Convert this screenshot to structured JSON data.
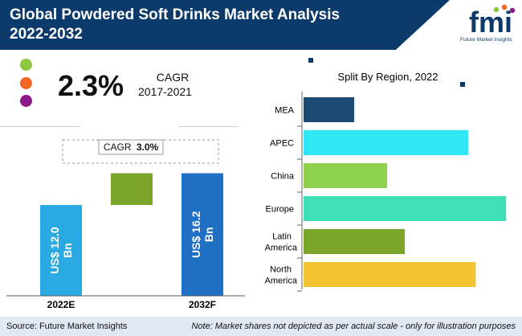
{
  "header": {
    "title_line1": "Global Powdered Soft Drinks Market Analysis",
    "title_line2": "2022-2032",
    "logo_text": "fmi",
    "logo_tagline": "Future Market Insights"
  },
  "colors": {
    "navy": "#0c3a6b",
    "dot_green": "#8dc63f",
    "dot_orange": "#f26522",
    "dot_purple": "#8b1a88",
    "bar_2022": "#29aae2",
    "bar_growth": "#7aa52a",
    "bar_2032": "#1f6fc5"
  },
  "cagr_summary": {
    "value": "2.3%",
    "label": "CAGR",
    "period": "2017-2021"
  },
  "chart_data": [
    {
      "type": "bar",
      "title": "",
      "categories": [
        "2022E",
        "2032F"
      ],
      "values": [
        12.0,
        16.2
      ],
      "bar_labels": [
        "US$ 12.0 Bn",
        "US$ 16.2 Bn"
      ],
      "growth_callout_prefix": "CAGR",
      "growth_callout_value": "3.0%",
      "ylim": [
        0,
        17
      ]
    },
    {
      "type": "bar",
      "orientation": "horizontal",
      "title": "Split By Region, 2022",
      "categories": [
        "MEA",
        "APEC",
        "China",
        "Europe",
        "Latin America",
        "North America"
      ],
      "category_lines": [
        [
          "MEA"
        ],
        [
          "APEC"
        ],
        [
          "China"
        ],
        [
          "Europe"
        ],
        [
          "Latin",
          "America"
        ],
        [
          "North",
          "America"
        ]
      ],
      "values": [
        20,
        65,
        33,
        80,
        40,
        68
      ],
      "colors": [
        "#1d4a72",
        "#2ee6f4",
        "#8fd14f",
        "#3fe0b5",
        "#7aa52a",
        "#f1c232"
      ],
      "xlim": [
        0,
        85
      ]
    }
  ],
  "footer": {
    "source": "Source: Future Market Insights",
    "note": "Note: Market shares not depicted as per actual scale - only for illustration purposes"
  }
}
